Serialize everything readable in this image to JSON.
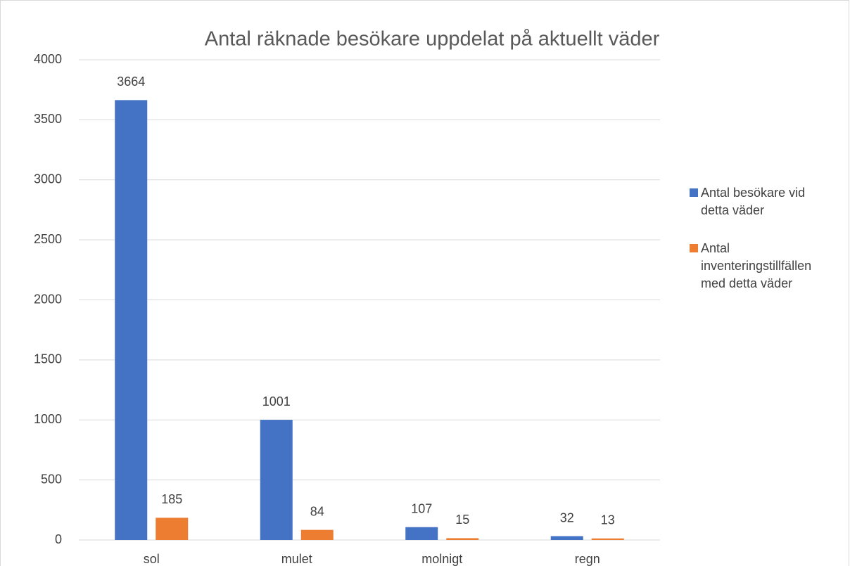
{
  "chart_data": {
    "type": "bar",
    "title": "Antal räknade besökare uppdelat på aktuellt väder",
    "categories": [
      "sol",
      "mulet",
      "molnigt",
      "regn"
    ],
    "series": [
      {
        "name": "Antal besökare vid detta väder",
        "color": "#4472c4",
        "values": [
          3664,
          1001,
          107,
          32
        ]
      },
      {
        "name": "Antal inventeringstillfällen med detta väder",
        "color": "#ed7d31",
        "values": [
          185,
          84,
          15,
          13
        ]
      }
    ],
    "ylim": [
      0,
      4000
    ],
    "yticks": [
      0,
      500,
      1000,
      1500,
      2000,
      2500,
      3000,
      3500,
      4000
    ],
    "grid": true,
    "legend": "right"
  }
}
